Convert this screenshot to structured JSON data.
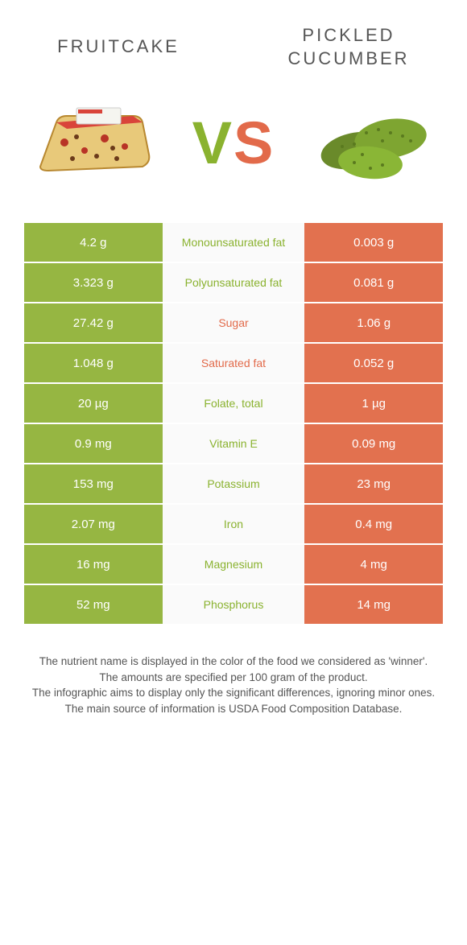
{
  "header": {
    "left_title": "Fruitcake",
    "right_title": "Pickled cucumber"
  },
  "vs": {
    "v": "V",
    "s": "S"
  },
  "colors": {
    "left_bg": "#96b642",
    "right_bg": "#e2714f",
    "left_text": "#8ab22f",
    "right_text": "#e26a4a",
    "mid_bg": "#fafafa"
  },
  "rows": [
    {
      "left": "4.2 g",
      "label": "Monounsaturated fat",
      "right": "0.003 g",
      "winner": "left"
    },
    {
      "left": "3.323 g",
      "label": "Polyunsaturated fat",
      "right": "0.081 g",
      "winner": "left"
    },
    {
      "left": "27.42 g",
      "label": "Sugar",
      "right": "1.06 g",
      "winner": "right"
    },
    {
      "left": "1.048 g",
      "label": "Saturated fat",
      "right": "0.052 g",
      "winner": "right"
    },
    {
      "left": "20 µg",
      "label": "Folate, total",
      "right": "1 µg",
      "winner": "left"
    },
    {
      "left": "0.9 mg",
      "label": "Vitamin E",
      "right": "0.09 mg",
      "winner": "left"
    },
    {
      "left": "153 mg",
      "label": "Potassium",
      "right": "23 mg",
      "winner": "left"
    },
    {
      "left": "2.07 mg",
      "label": "Iron",
      "right": "0.4 mg",
      "winner": "left"
    },
    {
      "left": "16 mg",
      "label": "Magnesium",
      "right": "4 mg",
      "winner": "left"
    },
    {
      "left": "52 mg",
      "label": "Phosphorus",
      "right": "14 mg",
      "winner": "left"
    }
  ],
  "footer": {
    "line1": "The nutrient name is displayed in the color of the food we considered as 'winner'.",
    "line2": "The amounts are specified per 100 gram of the product.",
    "line3": "The infographic aims to display only the significant differences, ignoring minor ones.",
    "line4": "The main source of information is USDA Food Composition Database."
  }
}
